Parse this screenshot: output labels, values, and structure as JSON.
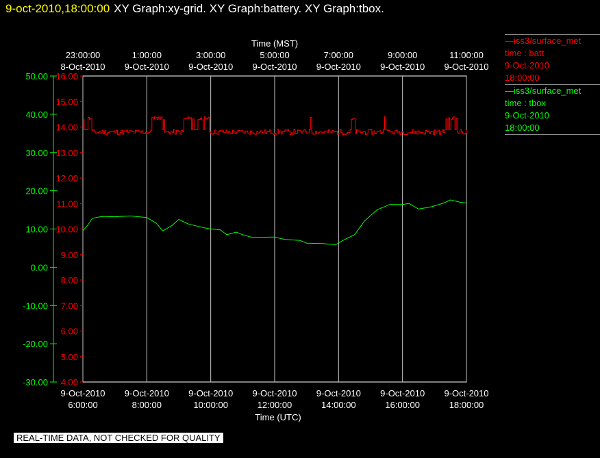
{
  "header": {
    "timestamp": "9-oct-2010,18:00:00",
    "titles": "XY Graph:xy-grid.  XY Graph:battery.  XY Graph:tbox."
  },
  "legend": [
    {
      "source": "—iss3/surface_met",
      "var": "time : batt",
      "date": "9-Oct-2010",
      "time": "18:00:00",
      "color": "#ff0000"
    },
    {
      "source": "—iss3/surface_met",
      "var": "time : tbox",
      "date": "9-Oct-2010",
      "time": "18:00:00",
      "color": "#00ff00"
    }
  ],
  "footer": "REAL-TIME DATA, NOT CHECKED FOR QUALITY",
  "chart_data": {
    "type": "line",
    "top_axis": {
      "title": "Time (MST)",
      "ticks": [
        {
          "t": 0,
          "time": "23:00:00",
          "date": "8-Oct-2010"
        },
        {
          "t": 2,
          "time": "1:00:00",
          "date": "9-Oct-2010"
        },
        {
          "t": 4,
          "time": "3:00:00",
          "date": "9-Oct-2010"
        },
        {
          "t": 6,
          "time": "5:00:00",
          "date": "9-Oct-2010"
        },
        {
          "t": 8,
          "time": "7:00:00",
          "date": "9-Oct-2010"
        },
        {
          "t": 10,
          "time": "9:00:00",
          "date": "9-Oct-2010"
        },
        {
          "t": 12,
          "time": "11:00:00",
          "date": "9-Oct-2010"
        }
      ]
    },
    "bottom_axis": {
      "title": "Time (UTC)",
      "ticks": [
        {
          "t": 0,
          "date": "9-Oct-2010",
          "time": "6:00:00"
        },
        {
          "t": 2,
          "date": "9-Oct-2010",
          "time": "8:00:00"
        },
        {
          "t": 4,
          "date": "9-Oct-2010",
          "time": "10:00:00"
        },
        {
          "t": 6,
          "date": "9-Oct-2010",
          "time": "12:00:00"
        },
        {
          "t": 8,
          "date": "9-Oct-2010",
          "time": "14:00:00"
        },
        {
          "t": 10,
          "date": "9-Oct-2010",
          "time": "16:00:00"
        },
        {
          "t": 12,
          "date": "9-Oct-2010",
          "time": "18:00:00"
        }
      ]
    },
    "x_range_hours_since_start": [
      0,
      12
    ],
    "grid": "vertical lines at major time ticks",
    "left_axis_outer": {
      "color": "#00ff00",
      "range": [
        -30,
        50
      ],
      "ticks": [
        "50.00",
        "40.00",
        "30.00",
        "20.00",
        "10.00",
        "0.00",
        "-10.00",
        "-20.00",
        "-30.00"
      ]
    },
    "left_axis_inner": {
      "color": "#ff0000",
      "range": [
        4,
        16
      ],
      "ticks": [
        "16.00",
        "15.00",
        "14.00",
        "13.00",
        "12.00",
        "11.00",
        "10.00",
        "9.00",
        "8.00",
        "7.00",
        "6.00",
        "5.00",
        "4.00"
      ]
    },
    "series": [
      {
        "name": "batt",
        "color": "#ff0000",
        "axis": "inner",
        "baseline": 13.8,
        "high": 14.4,
        "high_periods_hours": [
          [
            0.0,
            0.25
          ],
          [
            2.15,
            2.55
          ],
          [
            3.15,
            3.95
          ],
          [
            7.05,
            7.15
          ],
          [
            8.35,
            8.5
          ],
          [
            9.4,
            9.5
          ],
          [
            11.3,
            11.7
          ]
        ],
        "points": [
          [
            0,
            13.8
          ],
          [
            12,
            13.8
          ]
        ]
      },
      {
        "name": "tbox",
        "color": "#00ff00",
        "axis": "outer",
        "points": [
          [
            0.0,
            9.5
          ],
          [
            0.15,
            11.0
          ],
          [
            0.3,
            12.8
          ],
          [
            0.6,
            13.3
          ],
          [
            1.0,
            13.2
          ],
          [
            1.5,
            13.4
          ],
          [
            2.0,
            13.0
          ],
          [
            2.3,
            11.5
          ],
          [
            2.5,
            9.5
          ],
          [
            2.8,
            11.0
          ],
          [
            3.0,
            12.5
          ],
          [
            3.3,
            11.3
          ],
          [
            3.8,
            10.3
          ],
          [
            4.0,
            10.0
          ],
          [
            4.3,
            9.8
          ],
          [
            4.5,
            8.5
          ],
          [
            4.8,
            9.2
          ],
          [
            5.0,
            8.5
          ],
          [
            5.3,
            7.8
          ],
          [
            6.0,
            7.9
          ],
          [
            6.3,
            7.3
          ],
          [
            6.8,
            7.0
          ],
          [
            7.0,
            6.3
          ],
          [
            7.5,
            6.2
          ],
          [
            7.9,
            5.9
          ],
          [
            8.2,
            7.3
          ],
          [
            8.5,
            8.5
          ],
          [
            8.8,
            12.0
          ],
          [
            9.2,
            15.0
          ],
          [
            9.6,
            16.4
          ],
          [
            10.0,
            16.4
          ],
          [
            10.2,
            16.7
          ],
          [
            10.5,
            15.2
          ],
          [
            10.9,
            15.8
          ],
          [
            11.3,
            16.8
          ],
          [
            11.5,
            17.6
          ],
          [
            11.8,
            17.0
          ],
          [
            12.0,
            16.8
          ]
        ]
      }
    ]
  }
}
